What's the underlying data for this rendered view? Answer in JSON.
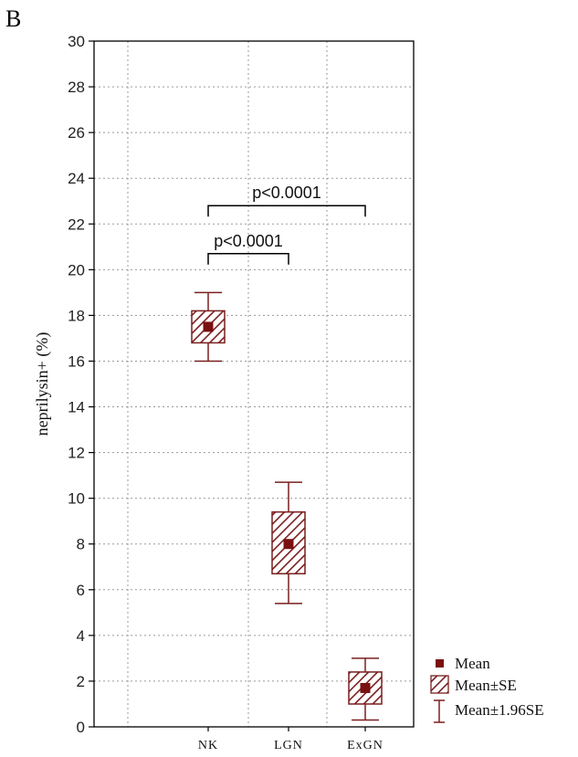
{
  "panel_label": "B",
  "colors": {
    "box": "#7a1f1f",
    "mean": "#7a1010",
    "grid": "#9a9a9a",
    "axis": "#000000"
  },
  "chart_data": {
    "type": "box",
    "title": "",
    "xlabel": "",
    "ylabel": "neprilysin+ (%)",
    "ylim": [
      0,
      30
    ],
    "yticks": [
      0,
      2,
      4,
      6,
      8,
      10,
      12,
      14,
      16,
      18,
      20,
      22,
      24,
      26,
      28,
      30
    ],
    "grid": true,
    "categories": [
      "NK",
      "LGN",
      "ExGN"
    ],
    "mean": [
      17.5,
      8.0,
      1.7
    ],
    "se_low": [
      16.8,
      6.7,
      1.0
    ],
    "se_high": [
      18.2,
      9.4,
      2.4
    ],
    "ci196_low": [
      16.0,
      5.4,
      0.3
    ],
    "ci196_high": [
      19.0,
      10.7,
      3.0
    ],
    "annotations": [
      {
        "text": "p<0.0001",
        "from": "NK",
        "to": "LGN",
        "y": 20.7
      },
      {
        "text": "p<0.0001",
        "from": "NK",
        "to": "ExGN",
        "y": 22.8
      }
    ],
    "legend": {
      "position": "bottom-right",
      "entries": [
        "Mean",
        "Mean±SE",
        "Mean±1.96SE"
      ]
    }
  }
}
